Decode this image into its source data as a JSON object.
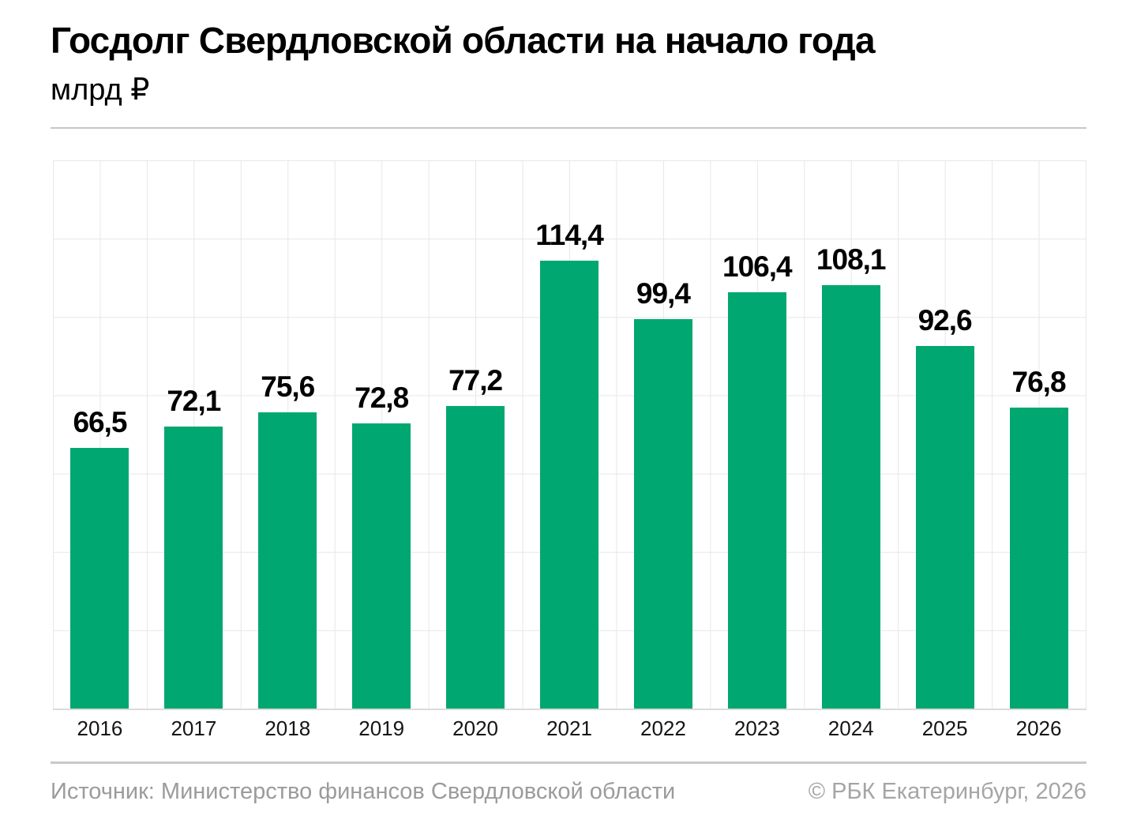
{
  "header": {
    "title": "Госдолг Свердловской области на начало года",
    "subtitle": "млрд ₽"
  },
  "chart_data": {
    "type": "bar",
    "title": "Госдолг Свердловской области на начало года",
    "subtitle_units": "млрд ₽",
    "categories": [
      "2016",
      "2017",
      "2018",
      "2019",
      "2020",
      "2021",
      "2022",
      "2023",
      "2024",
      "2025",
      "2026"
    ],
    "values": [
      66.5,
      72.1,
      75.6,
      72.8,
      77.2,
      114.4,
      99.4,
      106.4,
      108.1,
      92.6,
      76.8
    ],
    "value_labels": [
      "66,5",
      "72,1",
      "75,6",
      "72,8",
      "77,2",
      "114,4",
      "99,4",
      "106,4",
      "108,1",
      "92,6",
      "76,8"
    ],
    "xlabel": "",
    "ylabel": "млрд ₽",
    "ylim": [
      0,
      140
    ],
    "grid_step": 20,
    "grid": true,
    "legend": false,
    "bar_color": "#00a770"
  },
  "colors": {
    "bar": "#00a770",
    "gridline": "#e7e7e7",
    "axis_line": "#dbdbdb",
    "divider": "#c7c7c7",
    "title_text": "#000000",
    "value_label_text": "#000000",
    "x_label_text": "#151515",
    "source_text": "#9b9b9b",
    "copyright_text": "#a5a5a5",
    "background": "#ffffff"
  },
  "footer": {
    "source": "Источник: Министерство финансов Свердловской области",
    "copyright": "© РБК Екатеринбург, 2026"
  }
}
